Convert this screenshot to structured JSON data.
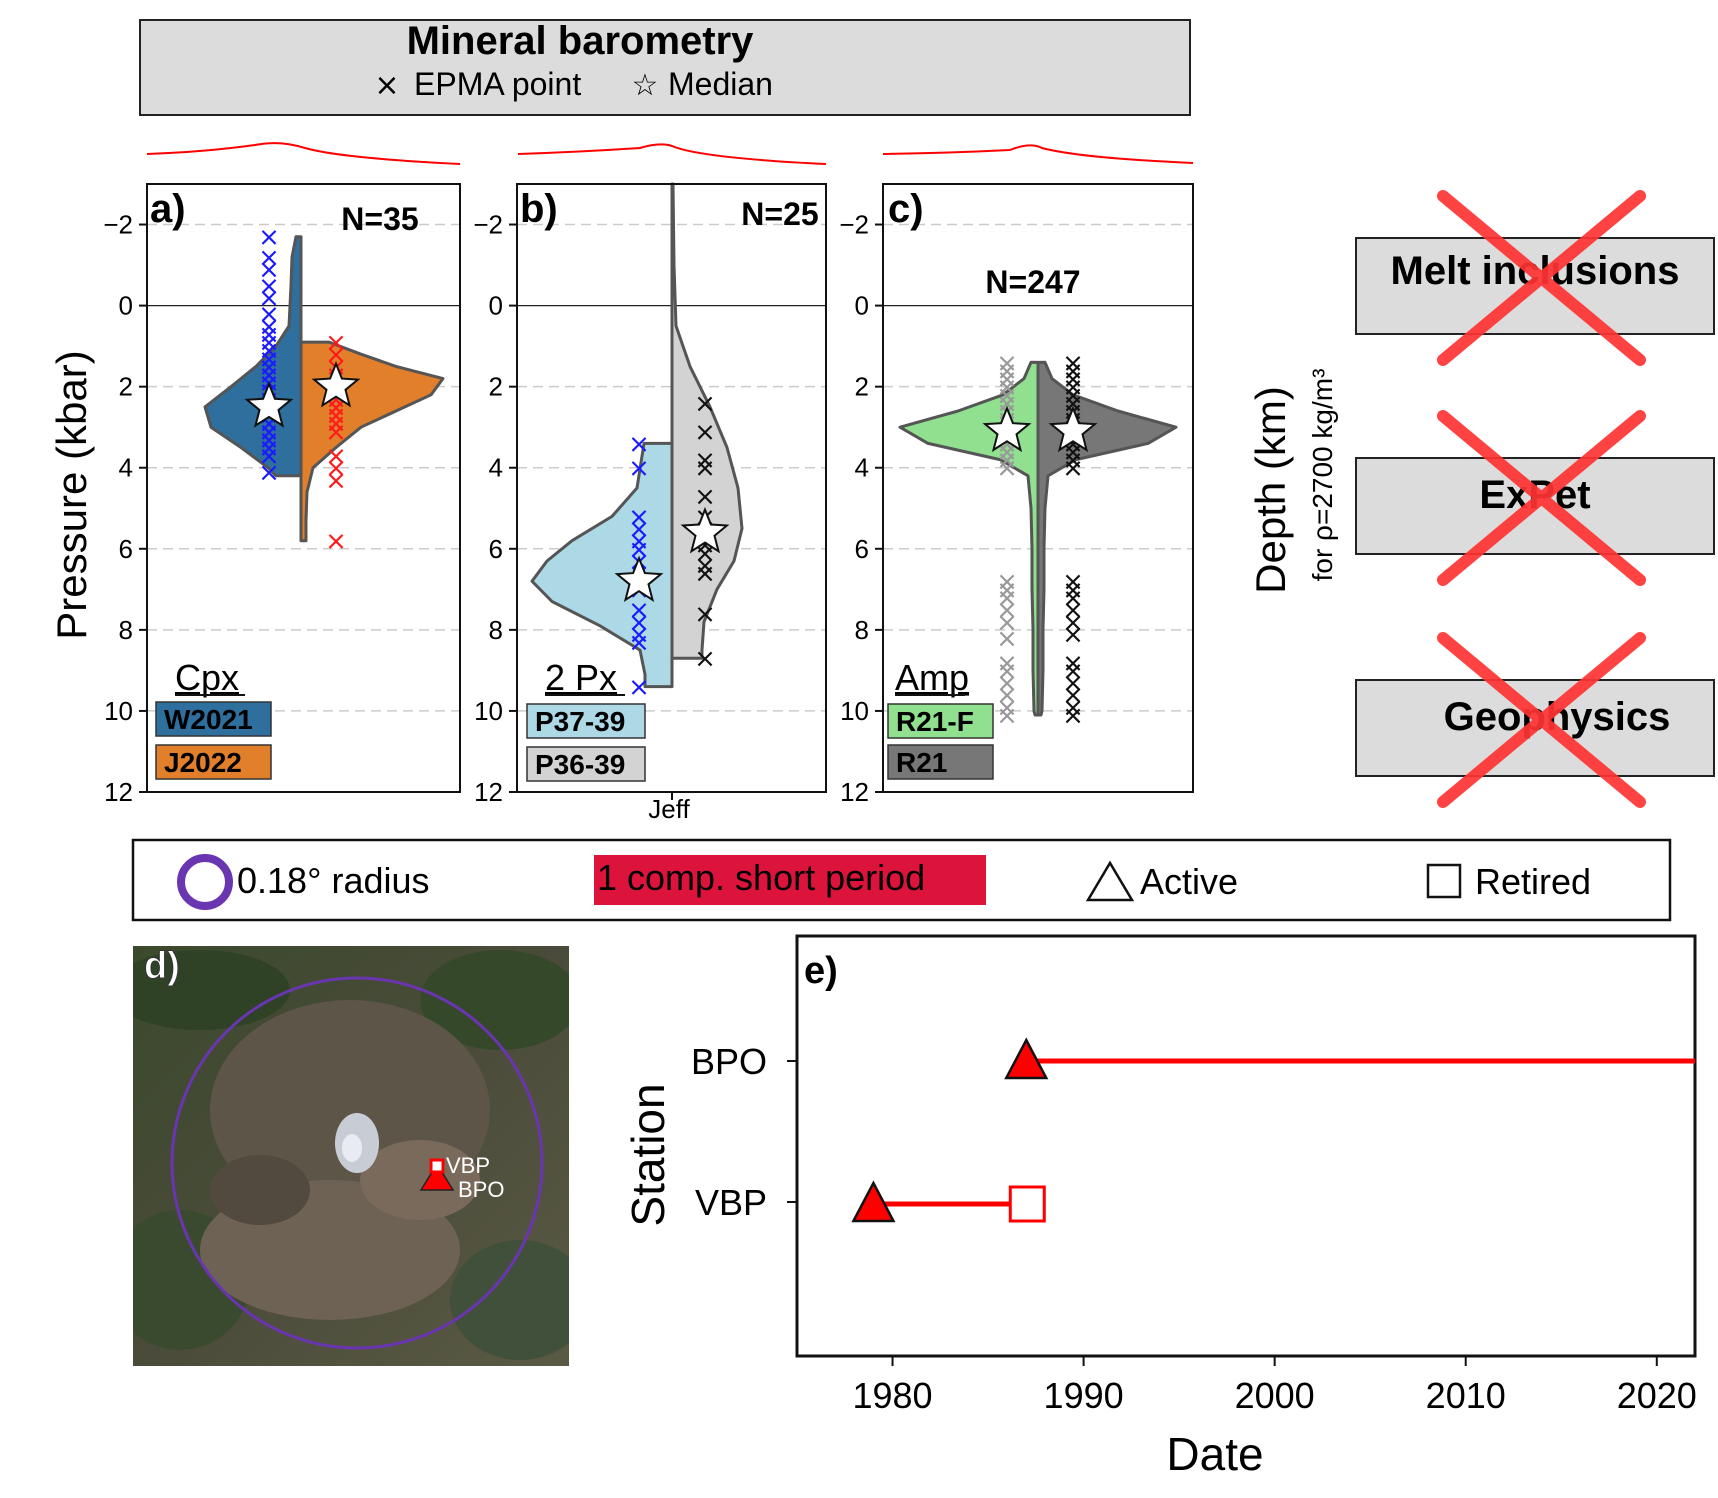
{
  "header": {
    "title": "Mineral barometry",
    "legend_x_label": "EPMA point",
    "legend_star_label": "Median"
  },
  "right_panel": {
    "ylabel": "Depth (km)",
    "ylabel_sub": "for ρ=2700 kg/m³",
    "boxes": [
      "Melt inclusions",
      "ExPet",
      "Geophysics"
    ],
    "cross_color": "#ff3333"
  },
  "map_legend": {
    "circle_label": "0.18° radius",
    "short_period_label": "1 comp. short period",
    "active_label": "Active",
    "retired_label": "Retired",
    "circle_color": "#6a35b0",
    "short_period_color": "#dc143c"
  },
  "map": {
    "panel_label": "d)",
    "station_labels": [
      "VBP",
      "BPO"
    ]
  },
  "chart_data": [
    {
      "type": "violin",
      "panel": "a)",
      "n_label": "N=35",
      "ylabel": "Pressure (kbar)",
      "ylim": [
        12,
        -3
      ],
      "yticks": [
        -2,
        0,
        2,
        4,
        6,
        8,
        10,
        12
      ],
      "group_label": "Cpx",
      "series": [
        {
          "name": "W2021",
          "color": "#2e6f9e",
          "point_color": "#1a1aff",
          "median": 2.5,
          "points": [
            -1.7,
            -1.2,
            -0.9,
            -0.5,
            -0.2,
            0.2,
            0.5,
            0.7,
            0.9,
            1.1,
            1.3,
            1.5,
            1.7,
            1.9,
            2.1,
            2.3,
            2.5,
            2.7,
            2.9,
            3.1,
            3.3,
            3.5,
            3.7,
            4.1
          ]
        },
        {
          "name": "J2022",
          "color": "#e27f2b",
          "point_color": "#ff1a1a",
          "median": 2.0,
          "points": [
            0.9,
            1.2,
            1.5,
            1.7,
            2.0,
            2.3,
            2.5,
            2.7,
            2.9,
            3.1,
            3.7,
            4.0,
            4.3,
            5.8
          ]
        }
      ]
    },
    {
      "type": "violin",
      "panel": "b)",
      "n_label": "N=25",
      "ylim": [
        12,
        -3
      ],
      "yticks": [
        -2,
        0,
        2,
        4,
        6,
        8,
        10,
        12
      ],
      "xtick_label": "Jeff",
      "group_label": "2 Px",
      "series": [
        {
          "name": "P37-39",
          "color": "#add8e6",
          "point_color": "#1a1aff",
          "median": 6.8,
          "points": [
            3.4,
            4.0,
            5.2,
            5.5,
            5.8,
            6.0,
            6.3,
            6.6,
            7.0,
            7.5,
            7.8,
            8.1,
            8.3,
            9.4
          ]
        },
        {
          "name": "P36-39",
          "color": "#d3d3d3",
          "point_color": "#111111",
          "median": 5.6,
          "points": [
            2.4,
            3.1,
            3.8,
            4.0,
            4.7,
            5.2,
            5.6,
            5.9,
            6.1,
            6.4,
            6.6,
            7.6,
            8.7
          ]
        }
      ]
    },
    {
      "type": "violin",
      "panel": "c)",
      "n_label": "N=247",
      "ylim": [
        12,
        -3
      ],
      "yticks": [
        -2,
        0,
        2,
        4,
        6,
        8,
        10,
        12
      ],
      "group_label": "Amp",
      "series": [
        {
          "name": "R21-F",
          "color": "#90e090",
          "point_color": "#999999",
          "median": 3.1,
          "points": [
            1.4,
            1.6,
            1.8,
            2.0,
            2.2,
            2.4,
            2.6,
            2.8,
            3.0,
            3.2,
            3.4,
            3.6,
            3.8,
            4.0,
            6.8,
            7.0,
            7.2,
            7.5,
            7.8,
            8.2,
            8.8,
            9.0,
            9.3,
            9.6,
            9.9,
            10.1
          ]
        },
        {
          "name": "R21",
          "color": "#777777",
          "point_color": "#111111",
          "median": 3.1,
          "points": [
            1.4,
            1.6,
            1.8,
            2.0,
            2.2,
            2.4,
            2.6,
            2.8,
            3.0,
            3.2,
            3.4,
            3.6,
            3.8,
            4.0,
            6.8,
            7.0,
            7.2,
            7.5,
            7.8,
            8.1,
            8.8,
            9.0,
            9.3,
            9.6,
            9.9,
            10.1
          ]
        }
      ]
    },
    {
      "type": "timeline",
      "panel": "e)",
      "xlabel": "Date",
      "ylabel": "Station",
      "xlim": [
        1975,
        2022
      ],
      "xticks": [
        1980,
        1990,
        2000,
        2010,
        2020
      ],
      "stations": [
        {
          "name": "BPO",
          "start": 1987,
          "end": 2022,
          "status": "Active"
        },
        {
          "name": "VBP",
          "start": 1979,
          "end": 1987,
          "status": "Retired"
        }
      ],
      "color": "#ff0000"
    }
  ]
}
